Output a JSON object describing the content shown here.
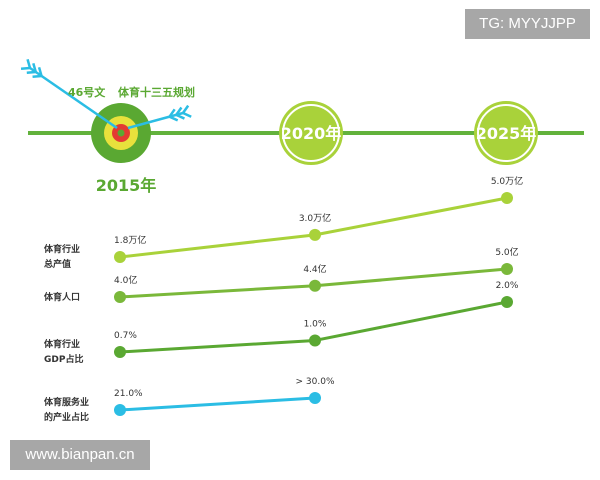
{
  "watermarks": {
    "top": "TG: MYYJJPP",
    "bottom": "www.bianpan.cn"
  },
  "timeline": {
    "notes": [
      "46号文",
      "体育十三五规划"
    ],
    "milestones": [
      "2015年",
      "2020年",
      "2025年"
    ]
  },
  "colors": {
    "timeline": "#62b23c",
    "dark_green": "#5aa832",
    "light_green": "#a9d23a",
    "mid_green": "#7ab83a",
    "cyan": "#2bbde4",
    "arrow": "#2bbde4",
    "target_red": "#e33a32",
    "target_yellow": "#e8e13c"
  },
  "chart_data": {
    "type": "line",
    "categories": [
      "2015年",
      "2020年",
      "2025年"
    ],
    "series": [
      {
        "name": "体育行业\n总产值",
        "values": [
          1.8,
          3.0,
          5.0
        ],
        "labels": [
          "1.8万亿",
          "3.0万亿",
          "5.0万亿"
        ],
        "color": "#a9d23a"
      },
      {
        "name": "体育人口",
        "values": [
          4.0,
          4.4,
          5.0
        ],
        "labels": [
          "4.0亿",
          "4.4亿",
          "5.0亿"
        ],
        "color": "#7ab83a"
      },
      {
        "name": "体育行业\nGDP占比",
        "values": [
          0.7,
          1.0,
          2.0
        ],
        "labels": [
          "0.7%",
          "1.0%",
          "2.0%"
        ],
        "color": "#5aa832"
      },
      {
        "name": "体育服务业\n的产业占比",
        "values": [
          21.0,
          30.0,
          null
        ],
        "labels": [
          "21.0%",
          "> 30.0%",
          ""
        ],
        "color": "#2bbde4"
      }
    ]
  }
}
